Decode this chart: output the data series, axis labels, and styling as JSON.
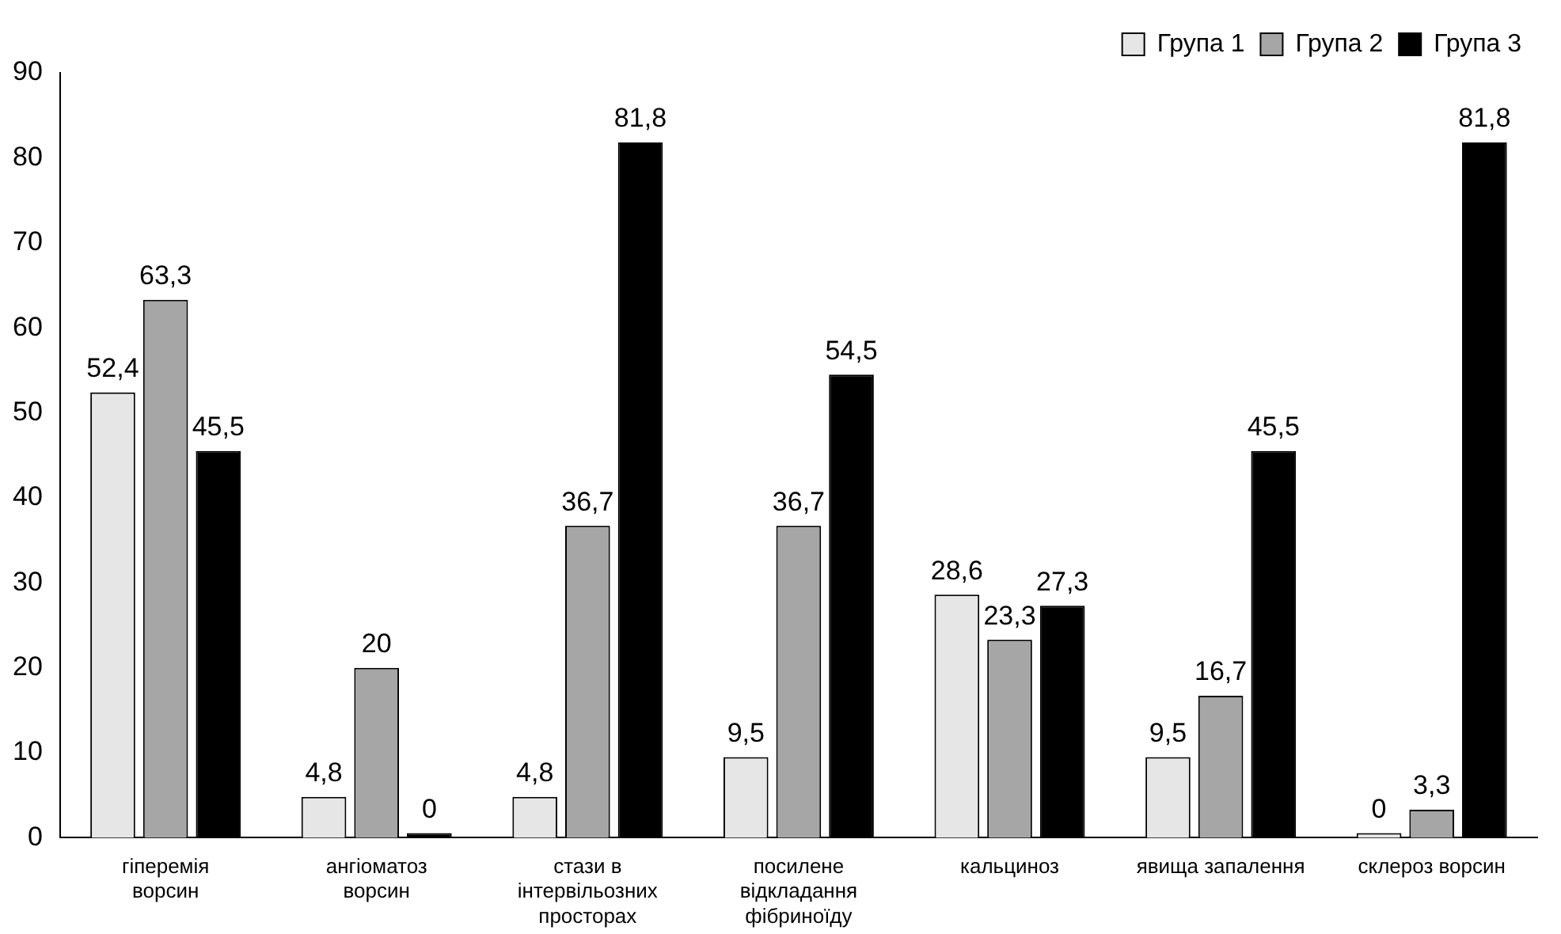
{
  "chart_data": {
    "type": "bar",
    "categories": [
      "гіперемія ворсин",
      "ангіоматоз ворсин",
      "стази в інтервільозних просторах",
      "посилене відкладання фібриноїду",
      "кальциноз",
      "явища запалення",
      "склероз ворсин"
    ],
    "series": [
      {
        "name": "Група 1",
        "color": "#e6e6e6",
        "values": [
          52.4,
          4.8,
          4.8,
          9.5,
          28.6,
          9.5,
          0
        ],
        "value_labels": [
          "52,4",
          "4,8",
          "4,8",
          "9,5",
          "28,6",
          "9,5",
          "0"
        ]
      },
      {
        "name": "Група 2",
        "color": "#a6a6a6",
        "values": [
          63.3,
          20,
          36.7,
          36.7,
          23.3,
          16.7,
          3.3
        ],
        "value_labels": [
          "63,3",
          "20",
          "36,7",
          "36,7",
          "23,3",
          "16,7",
          "3,3"
        ]
      },
      {
        "name": "Група 3",
        "color": "#000000",
        "values": [
          45.5,
          0,
          81.8,
          54.5,
          27.3,
          45.5,
          81.8
        ],
        "value_labels": [
          "45,5",
          "0",
          "81,8",
          "54,5",
          "27,3",
          "45,5",
          "81,8"
        ]
      }
    ],
    "ylim": [
      0,
      90
    ],
    "yticks": [
      0,
      10,
      20,
      30,
      40,
      50,
      60,
      70,
      80,
      90
    ],
    "grid": false,
    "legend": "top right"
  }
}
